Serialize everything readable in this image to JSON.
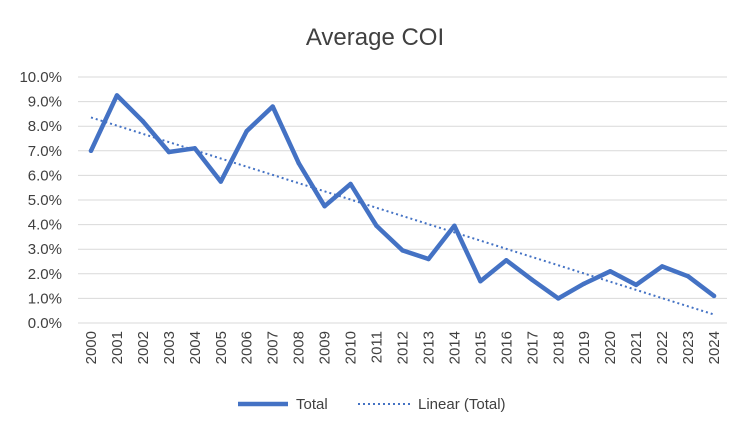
{
  "chart_data": {
    "type": "line",
    "title": "Average COI",
    "xlabel": "",
    "ylabel": "",
    "categories": [
      "2000",
      "2001",
      "2002",
      "2003",
      "2004",
      "2005",
      "2006",
      "2007",
      "2008",
      "2009",
      "2010",
      "2011",
      "2012",
      "2013",
      "2014",
      "2015",
      "2016",
      "2017",
      "2018",
      "2019",
      "2020",
      "2021",
      "2022",
      "2023",
      "2024"
    ],
    "series": [
      {
        "name": "Total",
        "color": "#4472c4",
        "values": [
          7.0,
          9.25,
          8.2,
          6.95,
          7.1,
          5.75,
          7.8,
          8.8,
          6.5,
          4.75,
          5.65,
          3.95,
          2.95,
          2.6,
          3.95,
          1.7,
          2.55,
          1.75,
          1.0,
          1.6,
          2.1,
          1.55,
          2.3,
          1.9,
          1.1
        ]
      }
    ],
    "trendline": {
      "name": "Linear (Total)",
      "color": "#4472c4",
      "type": "linear"
    },
    "y_ticks": [
      "0.0%",
      "1.0%",
      "2.0%",
      "3.0%",
      "4.0%",
      "5.0%",
      "6.0%",
      "7.0%",
      "8.0%",
      "9.0%",
      "10.0%"
    ],
    "ylim": [
      0,
      10
    ],
    "grid": true,
    "legend": "bottom"
  }
}
